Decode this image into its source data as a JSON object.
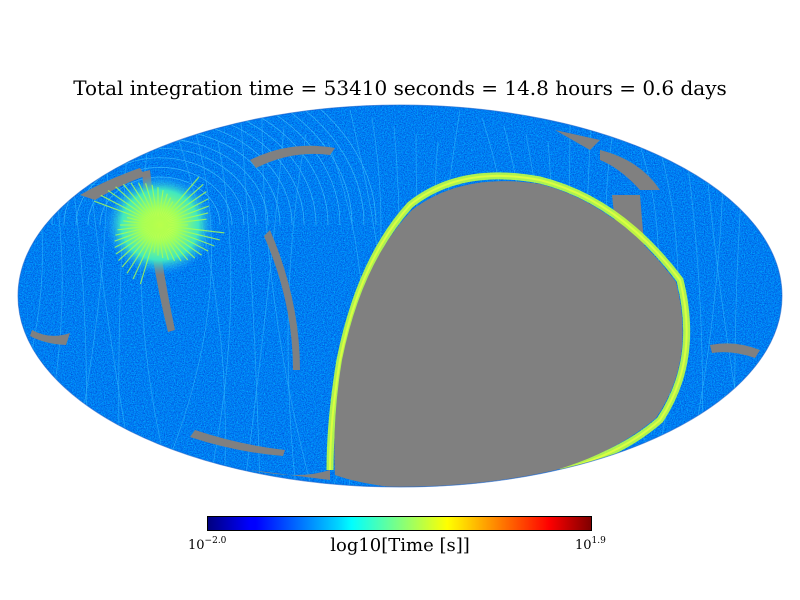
{
  "chart_data": {
    "type": "heatmap",
    "projection": "mollweide",
    "title": "Total integration time = 53410 seconds = 14.8 hours = 0.6 days",
    "colorbar": {
      "label": "log10[Time [s]]",
      "min_base": "10",
      "min_exp": "−2.0",
      "max_base": "10",
      "max_exp": "1.9",
      "vmin_log10": -2.0,
      "vmax_log10": 1.9,
      "colormap": "jet"
    },
    "unobserved_color": "#808080",
    "regions": [
      {
        "name": "hotspot",
        "log10_time": 0.6
      },
      {
        "name": "scan-ridge",
        "log10_time": 0.2
      },
      {
        "name": "background",
        "log10_time": -1.0
      }
    ]
  }
}
